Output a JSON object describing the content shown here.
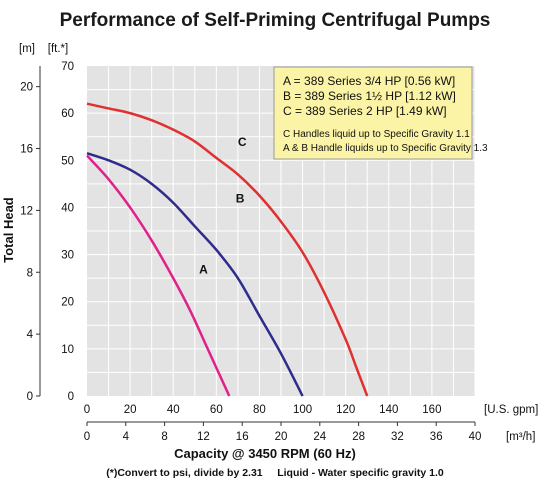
{
  "chart_data": {
    "type": "line",
    "title": "Performance of Self-Priming Centrifugal Pumps",
    "xlabel": "Capacity @ 3450 RPM (60 Hz)",
    "ylabel": "Total Head",
    "x_unit": "[U.S. gpm]",
    "x2_unit": "[m³/h]",
    "y_unit": "[ft.*]",
    "y2_unit": "[m]",
    "xlim": [
      0,
      180
    ],
    "ylim": [
      0,
      70
    ],
    "x_ticks": [
      "0",
      "20",
      "40",
      "60",
      "80",
      "100",
      "120",
      "140",
      "160"
    ],
    "x2_ticks": [
      "0",
      "4",
      "8",
      "12",
      "16",
      "20",
      "24",
      "28",
      "32",
      "36",
      "40"
    ],
    "y_ticks": [
      "0",
      "10",
      "20",
      "30",
      "40",
      "50",
      "60",
      "70"
    ],
    "y2_ticks": [
      "0",
      "4",
      "8",
      "12",
      "16",
      "20"
    ],
    "grid": true,
    "series": [
      {
        "name": "A",
        "color": "#e0218a",
        "x": [
          0,
          10,
          20,
          30,
          40,
          48,
          55,
          60,
          66
        ],
        "y": [
          51,
          46,
          40,
          33,
          25,
          18,
          11,
          6,
          0
        ]
      },
      {
        "name": "B",
        "color": "#2e2c8c",
        "x": [
          0,
          10,
          20,
          30,
          40,
          50,
          60,
          70,
          80,
          90,
          100
        ],
        "y": [
          51.5,
          50,
          48,
          45,
          41,
          36,
          31,
          25,
          17,
          9,
          0
        ]
      },
      {
        "name": "C",
        "color": "#e03030",
        "x": [
          0,
          10,
          20,
          30,
          40,
          50,
          60,
          70,
          80,
          90,
          100,
          110,
          120,
          125,
          130
        ],
        "y": [
          62,
          61,
          60,
          58.5,
          56.5,
          54,
          50.5,
          47,
          42.5,
          37,
          30.5,
          22,
          12,
          6,
          0
        ]
      }
    ],
    "legend": {
      "lines": [
        "A = 389 Series 3/4 HP [0.56 kW]",
        "B = 389 Series 1½ HP [1.12 kW]",
        "C = 389 Series 2 HP [1.49 kW]"
      ],
      "notes": [
        "C Handles liquid up to Specific Gravity 1.1",
        "A & B Handle liquids up to Specific Gravity 1.3"
      ],
      "background": "#fbf3a6"
    },
    "footnote": "(*)Convert to psi, divide by 2.31     Liquid - Water specific gravity 1.0"
  }
}
